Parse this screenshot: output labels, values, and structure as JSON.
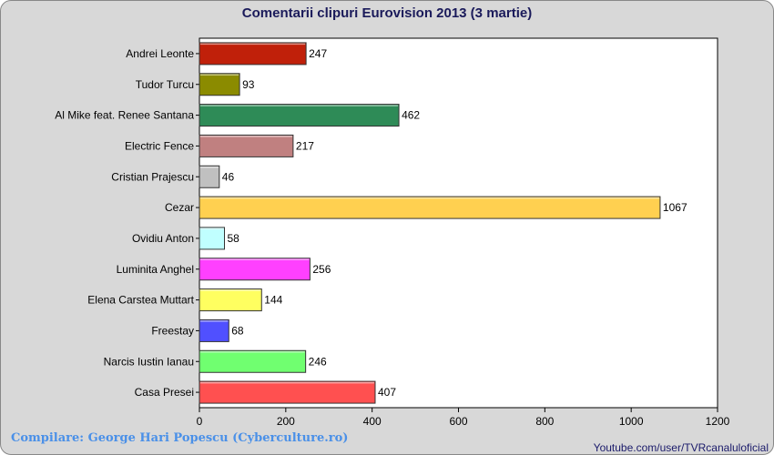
{
  "chart_data": {
    "type": "bar",
    "orientation": "horizontal",
    "title": "Comentarii clipuri Eurovision 2013 (3 martie)",
    "xlabel": "",
    "ylabel": "",
    "xlim": [
      0,
      1200
    ],
    "xticks": [
      0,
      200,
      400,
      600,
      800,
      1000,
      1200
    ],
    "grid": false,
    "categories": [
      "Andrei Leonte",
      "Tudor Turcu",
      "Al Mike feat. Renee Santana",
      "Electric Fence",
      "Cristian Prajescu",
      "Cezar",
      "Ovidiu Anton",
      "Luminita Anghel",
      "Elena Carstea Muttart",
      "Freestay",
      "Narcis Iustin Ianau",
      "Casa Presei"
    ],
    "values": [
      247,
      93,
      462,
      217,
      46,
      1067,
      58,
      256,
      144,
      68,
      246,
      407
    ],
    "colors": [
      "#c0200a",
      "#8b8b00",
      "#2e8b57",
      "#c08080",
      "#c0c0c0",
      "#ffd050",
      "#c0ffff",
      "#ff40ff",
      "#ffff60",
      "#5050ff",
      "#70ff70",
      "#ff5050"
    ]
  },
  "footer": {
    "credit": "Compilare: George Hari Popescu (Cyberculture.ro)",
    "source": "Youtube.com/user/TVRcanaluloficial"
  }
}
